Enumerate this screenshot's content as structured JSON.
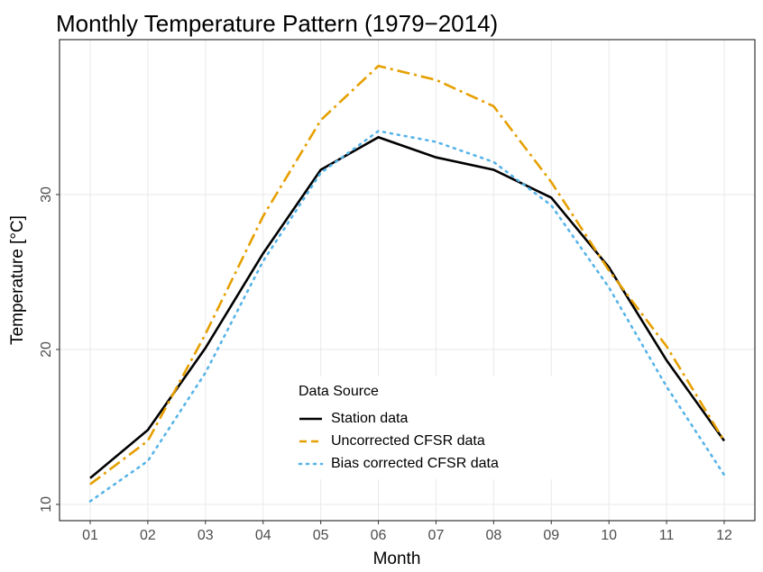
{
  "chart_data": {
    "type": "line",
    "title": "Monthly Temperature Pattern (1979−2014)",
    "x_label": "Month",
    "y_label": "Temperature [°C]",
    "categories": [
      "01",
      "02",
      "03",
      "04",
      "05",
      "06",
      "07",
      "08",
      "09",
      "10",
      "11",
      "12"
    ],
    "series": [
      {
        "name": "Station data",
        "color": "#000000",
        "dash": "solid",
        "values": [
          11.7,
          14.8,
          20.1,
          26.2,
          31.6,
          33.7,
          32.4,
          31.6,
          29.8,
          25.3,
          19.3,
          14.1
        ]
      },
      {
        "name": "Uncorrected CFSR data",
        "color": "#E69F00",
        "dash": "dotdash",
        "values": [
          11.3,
          14.1,
          21.0,
          28.6,
          34.8,
          38.3,
          37.4,
          35.7,
          30.8,
          25.1,
          20.2,
          14.1
        ]
      },
      {
        "name": "Bias corrected CFSR data",
        "color": "#56B4E9",
        "dash": "dotted",
        "values": [
          10.2,
          12.8,
          18.5,
          25.7,
          31.4,
          34.1,
          33.4,
          32.1,
          29.3,
          24.0,
          17.6,
          11.9
        ]
      }
    ],
    "legend_title": "Data Source",
    "legend_position": "inside-bottom-center",
    "ylim": [
      8.95,
      40
    ],
    "yticks": [
      10,
      20,
      30
    ],
    "grid": true
  }
}
